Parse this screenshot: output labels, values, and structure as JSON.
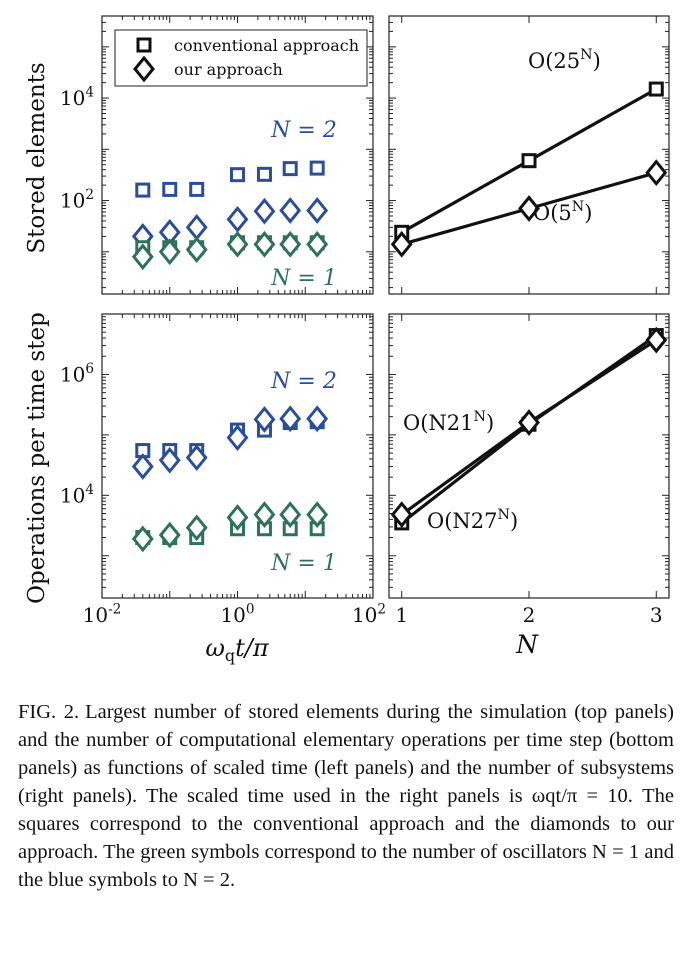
{
  "colors": {
    "blue": "#2a4e98",
    "green": "#2e7259",
    "black": "#111111"
  },
  "chart_data": [
    {
      "id": "top-left",
      "type": "scatter",
      "xscale": "log",
      "yscale": "log",
      "xlim": [
        0.01,
        100
      ],
      "ylim": [
        1.5,
        400000
      ],
      "xlabel": "",
      "ylabel": "Stored elements",
      "ytick_labels": [
        "10^2",
        "10^4"
      ],
      "annotations": [
        "N = 2",
        "N = 1"
      ],
      "legend": {
        "position": "top-left",
        "entries": [
          "conventional approach",
          "our approach"
        ]
      },
      "x": [
        0.04,
        0.1,
        0.25,
        1,
        2.5,
        6,
        15
      ],
      "series": [
        {
          "name": "conventional, N = 2",
          "marker": "square",
          "color": "blue",
          "values": [
            160,
            165,
            165,
            320,
            325,
            420,
            430
          ]
        },
        {
          "name": "our approach, N = 2",
          "marker": "diamond",
          "color": "blue",
          "values": [
            20,
            24,
            30,
            43,
            62,
            64,
            64
          ]
        },
        {
          "name": "conventional, N = 1",
          "marker": "square",
          "color": "green",
          "values": [
            12,
            12,
            12,
            15,
            15,
            15,
            15
          ]
        },
        {
          "name": "our approach, N = 1",
          "marker": "diamond",
          "color": "green",
          "values": [
            8,
            10,
            11,
            14,
            14,
            14,
            14
          ]
        }
      ]
    },
    {
      "id": "top-right",
      "type": "line",
      "xscale": "linear",
      "yscale": "log",
      "xlim": [
        0.9,
        3.1
      ],
      "ylim": [
        1.5,
        400000
      ],
      "x": [
        1,
        2,
        3
      ],
      "annotations": [
        "O(25^N)",
        "O(5^N)"
      ],
      "series": [
        {
          "name": "conventional approach",
          "marker": "square",
          "values": [
            24,
            600,
            15000
          ]
        },
        {
          "name": "our approach",
          "marker": "diamond",
          "values": [
            14,
            70,
            350
          ]
        }
      ]
    },
    {
      "id": "bottom-left",
      "type": "scatter",
      "xscale": "log",
      "yscale": "log",
      "xlim": [
        0.01,
        100
      ],
      "ylim": [
        200,
        10000000
      ],
      "xlabel": "ωqt/π",
      "ylabel": "Operations per time step",
      "xtick_labels": [
        "10^-2",
        "10^0",
        "10^2"
      ],
      "ytick_labels": [
        "10^4",
        "10^6"
      ],
      "annotations": [
        "N = 2",
        "N = 1"
      ],
      "x": [
        0.04,
        0.1,
        0.25,
        1,
        2.5,
        6,
        15
      ],
      "series": [
        {
          "name": "conventional, N = 2",
          "marker": "square",
          "color": "blue",
          "values": [
            55000,
            55000,
            55000,
            120000,
            120000,
            160000,
            165000
          ]
        },
        {
          "name": "our approach, N = 2",
          "marker": "diamond",
          "color": "blue",
          "values": [
            30000,
            38000,
            42000,
            90000,
            180000,
            185000,
            185000
          ]
        },
        {
          "name": "conventional, N = 1",
          "marker": "square",
          "color": "green",
          "values": [
            2000,
            2000,
            2000,
            2800,
            2800,
            2800,
            2800
          ]
        },
        {
          "name": "our approach, N = 1",
          "marker": "diamond",
          "color": "green",
          "values": [
            1900,
            2200,
            2900,
            4300,
            4800,
            4800,
            4800
          ]
        }
      ]
    },
    {
      "id": "bottom-right",
      "type": "line",
      "xscale": "linear",
      "yscale": "log",
      "xlim": [
        0.9,
        3.1
      ],
      "ylim": [
        200,
        10000000
      ],
      "xlabel": "N",
      "xtick_labels": [
        "1",
        "2",
        "3"
      ],
      "x": [
        1,
        2,
        3
      ],
      "annotations": [
        "O(N21^N)",
        "O(N27^N)"
      ],
      "series": [
        {
          "name": "conventional approach",
          "marker": "square",
          "values": [
            3500,
            150000,
            4400000
          ]
        },
        {
          "name": "our approach",
          "marker": "diamond",
          "values": [
            4800,
            160000,
            3700000
          ]
        }
      ]
    }
  ],
  "caption": {
    "label": "FIG. 2.",
    "text": "Largest number of stored elements during the simulation (top panels) and the number of computational elementary operations per time step (bottom panels) as functions of scaled time (left panels) and the number of subsystems (right panels). The scaled time used in the right panels is ωqt/π = 10. The squares correspond to the conventional approach and the diamonds to our approach. The green symbols correspond to the number of oscillators N = 1 and the blue symbols to N = 2."
  }
}
